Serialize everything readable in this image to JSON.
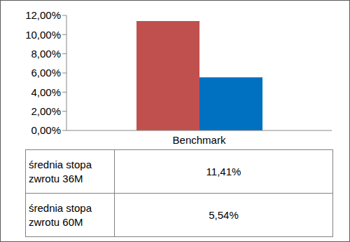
{
  "chart_data": {
    "type": "bar",
    "categories": [
      "Benchmark"
    ],
    "series": [
      {
        "name": "średnia stopa zwrotu 36M",
        "color": "#c0504d",
        "values": [
          11.41
        ],
        "value_labels": [
          "11,41%"
        ]
      },
      {
        "name": "średnia stopa zwrotu 60M",
        "color": "#0070c0",
        "values": [
          5.54
        ],
        "value_labels": [
          "5,54%"
        ]
      }
    ],
    "ylim": [
      0,
      12
    ],
    "yticks": [
      {
        "value": 0,
        "label": "0,00%"
      },
      {
        "value": 2,
        "label": "2,00%"
      },
      {
        "value": 4,
        "label": "4,00%"
      },
      {
        "value": 6,
        "label": "6,00%"
      },
      {
        "value": 8,
        "label": "8,00%"
      },
      {
        "value": 10,
        "label": "10,00%"
      },
      {
        "value": 12,
        "label": "12,00%"
      }
    ],
    "grid": false
  }
}
